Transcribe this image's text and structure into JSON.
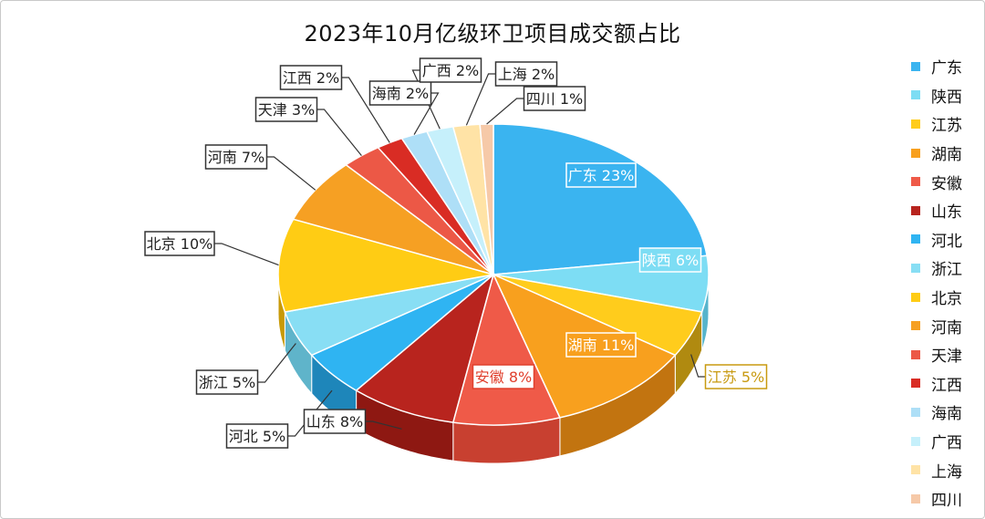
{
  "chart_data": {
    "type": "pie",
    "title": "2023年10月亿级环卫项目成交额占比",
    "legend_position": "right",
    "slices": [
      {
        "name": "广东",
        "value": 23,
        "label": "广东 23%",
        "color": "#3AB4F0",
        "side": "#2A8CC0",
        "labelColor": "#ffffff",
        "labelBg": "#3AB4F0",
        "labelBorder": "#ffffff"
      },
      {
        "name": "陕西",
        "value": 6,
        "label": "陕西 6%",
        "color": "#7DDDF4",
        "side": "#56B4CC",
        "labelColor": "#ffffff",
        "labelBg": "#7DDDF4",
        "labelBorder": "#ffffff"
      },
      {
        "name": "江苏",
        "value": 5,
        "label": "江苏 5%",
        "color": "#FFCC1C",
        "side": "#B08A10",
        "labelColor": "#C89A10",
        "labelBg": "#ffffff",
        "labelBorder": "#C89A10"
      },
      {
        "name": "湖南",
        "value": 11,
        "label": "湖南 11%",
        "color": "#F8A01E",
        "side": "#C27410",
        "labelColor": "#ffffff",
        "labelBg": "#F8A01E",
        "labelBorder": "#ffffff"
      },
      {
        "name": "安徽",
        "value": 8,
        "label": "安徽 8%",
        "color": "#EF5A48",
        "side": "#C84030",
        "labelColor": "#E0402E",
        "labelBg": "#ffffff",
        "labelBorder": "#E0402E"
      },
      {
        "name": "山东",
        "value": 8,
        "label": "山东 8%",
        "color": "#B8241E",
        "side": "#8E1812",
        "labelColor": "#222222",
        "labelBg": "#ffffff",
        "labelBorder": "#333333"
      },
      {
        "name": "河北",
        "value": 5,
        "label": "河北 5%",
        "color": "#2FB4F2",
        "side": "#1E86BA",
        "labelColor": "#222222",
        "labelBg": "#ffffff",
        "labelBorder": "#333333"
      },
      {
        "name": "浙江",
        "value": 5,
        "label": "浙江 5%",
        "color": "#88DEF4",
        "side": "#5FB4CA",
        "labelColor": "#222222",
        "labelBg": "#ffffff",
        "labelBorder": "#333333"
      },
      {
        "name": "北京",
        "value": 10,
        "label": "北京 10%",
        "color": "#FFCC14",
        "side": "#C89A08",
        "labelColor": "#222222",
        "labelBg": "#ffffff",
        "labelBorder": "#333333"
      },
      {
        "name": "河南",
        "value": 7,
        "label": "河南 7%",
        "color": "#F6A023",
        "side": "#C07610",
        "labelColor": "#222222",
        "labelBg": "#ffffff",
        "labelBorder": "#333333"
      },
      {
        "name": "天津",
        "value": 3,
        "label": "天津 3%",
        "color": "#EC5846",
        "side": "#BA3E2E",
        "labelColor": "#222222",
        "labelBg": "#ffffff",
        "labelBorder": "#333333"
      },
      {
        "name": "江西",
        "value": 2,
        "label": "江西 2%",
        "color": "#D92C24",
        "side": "#A81E18",
        "labelColor": "#222222",
        "labelBg": "#ffffff",
        "labelBorder": "#333333"
      },
      {
        "name": "海南",
        "value": 2,
        "label": "海南 2%",
        "color": "#AEDFF7",
        "side": "#86B8D0",
        "labelColor": "#222222",
        "labelBg": "#ffffff",
        "labelBorder": "#333333"
      },
      {
        "name": "广西",
        "value": 2,
        "label": "广西 2%",
        "color": "#C6F0FB",
        "side": "#9ECAD6",
        "labelColor": "#222222",
        "labelBg": "#ffffff",
        "labelBorder": "#333333"
      },
      {
        "name": "上海",
        "value": 2,
        "label": "上海 2%",
        "color": "#FFE3A6",
        "side": "#D4BA80",
        "labelColor": "#222222",
        "labelBg": "#ffffff",
        "labelBorder": "#333333"
      },
      {
        "name": "四川",
        "value": 1,
        "label": "四川 1%",
        "color": "#F6C9A8",
        "side": "#CFA282",
        "labelColor": "#222222",
        "labelBg": "#ffffff",
        "labelBorder": "#333333"
      }
    ]
  }
}
